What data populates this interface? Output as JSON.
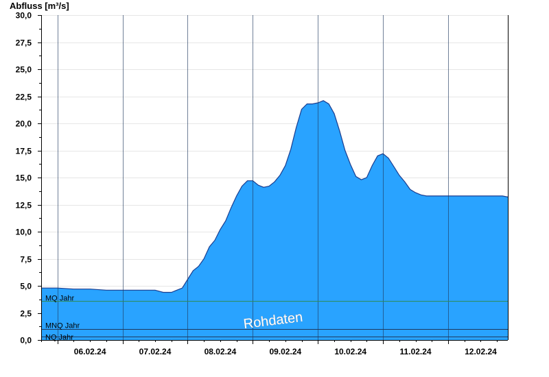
{
  "chart_data": {
    "type": "area",
    "ylabel": "Abfluss [m³/s]",
    "ylim": [
      0,
      30
    ],
    "yticks": [
      "0,0",
      "2,5",
      "5,0",
      "7,5",
      "10,0",
      "12,5",
      "15,0",
      "17,5",
      "20,0",
      "22,5",
      "25,0",
      "27,5",
      "30,0"
    ],
    "x_day_labels": [
      "06.02.24",
      "07.02.24",
      "08.02.24",
      "09.02.24",
      "10.02.24",
      "11.02.24",
      "12.02.24"
    ],
    "xlim": [
      "05.02.24 18:00",
      "12.02.24 22:00"
    ],
    "grid": true,
    "series": [
      {
        "color": "#29a3ff",
        "x": [
          "05.02.24 18:00",
          "06.02.24 00:00",
          "06.02.24 06:00",
          "06.02.24 12:00",
          "06.02.24 18:00",
          "07.02.24 00:00",
          "07.02.24 06:00",
          "07.02.24 12:00",
          "07.02.24 15:00",
          "07.02.24 18:00",
          "07.02.24 20:00",
          "07.02.24 22:00",
          "08.02.24 00:00",
          "08.02.24 02:00",
          "08.02.24 04:00",
          "08.02.24 06:00",
          "08.02.24 08:00",
          "08.02.24 10:00",
          "08.02.24 12:00",
          "08.02.24 14:00",
          "08.02.24 16:00",
          "08.02.24 18:00",
          "08.02.24 20:00",
          "08.02.24 22:00",
          "09.02.24 00:00",
          "09.02.24 02:00",
          "09.02.24 04:00",
          "09.02.24 06:00",
          "09.02.24 08:00",
          "09.02.24 10:00",
          "09.02.24 12:00",
          "09.02.24 14:00",
          "09.02.24 16:00",
          "09.02.24 18:00",
          "09.02.24 20:00",
          "09.02.24 22:00",
          "10.02.24 00:00",
          "10.02.24 02:00",
          "10.02.24 04:00",
          "10.02.24 06:00",
          "10.02.24 08:00",
          "10.02.24 10:00",
          "10.02.24 12:00",
          "10.02.24 14:00",
          "10.02.24 16:00",
          "10.02.24 18:00",
          "10.02.24 20:00",
          "10.02.24 22:00",
          "11.02.24 00:00",
          "11.02.24 02:00",
          "11.02.24 04:00",
          "11.02.24 06:00",
          "11.02.24 08:00",
          "11.02.24 10:00",
          "11.02.24 12:00",
          "11.02.24 14:00",
          "11.02.24 16:00",
          "11.02.24 18:00",
          "11.02.24 20:00",
          "11.02.24 22:00",
          "12.02.24 00:00",
          "12.02.24 02:00",
          "12.02.24 04:00",
          "12.02.24 06:00",
          "12.02.24 08:00",
          "12.02.24 10:00",
          "12.02.24 12:00",
          "12.02.24 14:00",
          "12.02.24 16:00",
          "12.02.24 18:00",
          "12.02.24 20:00",
          "12.02.24 22:00"
        ],
        "values": [
          4.8,
          4.8,
          4.7,
          4.7,
          4.6,
          4.6,
          4.6,
          4.6,
          4.4,
          4.4,
          4.6,
          4.8,
          5.6,
          6.4,
          6.8,
          7.5,
          8.6,
          9.2,
          10.2,
          11.0,
          12.2,
          13.3,
          14.2,
          14.7,
          14.7,
          14.3,
          14.1,
          14.2,
          14.6,
          15.2,
          16.1,
          17.6,
          19.6,
          21.3,
          21.8,
          21.8,
          21.9,
          22.1,
          21.8,
          20.9,
          19.3,
          17.5,
          16.2,
          15.1,
          14.8,
          15.0,
          16.1,
          17.0,
          17.2,
          16.8,
          16.0,
          15.2,
          14.6,
          13.9,
          13.6,
          13.4,
          13.3,
          13.3,
          13.3,
          13.3,
          13.3,
          13.3,
          13.3,
          13.3,
          13.3,
          13.3,
          13.3,
          13.3,
          13.3,
          13.3,
          13.3,
          13.2
        ]
      }
    ],
    "reference_lines": [
      {
        "label": "MQ Jahr",
        "value": 3.6,
        "color": "#2e8b57"
      },
      {
        "label": "MNQ Jahr",
        "value": 1.0,
        "color": "#1e3a5f"
      },
      {
        "label": "NQ Jahr",
        "value": 0.3,
        "color": "#1e3a5f"
      }
    ],
    "watermark": "Rohdaten"
  }
}
